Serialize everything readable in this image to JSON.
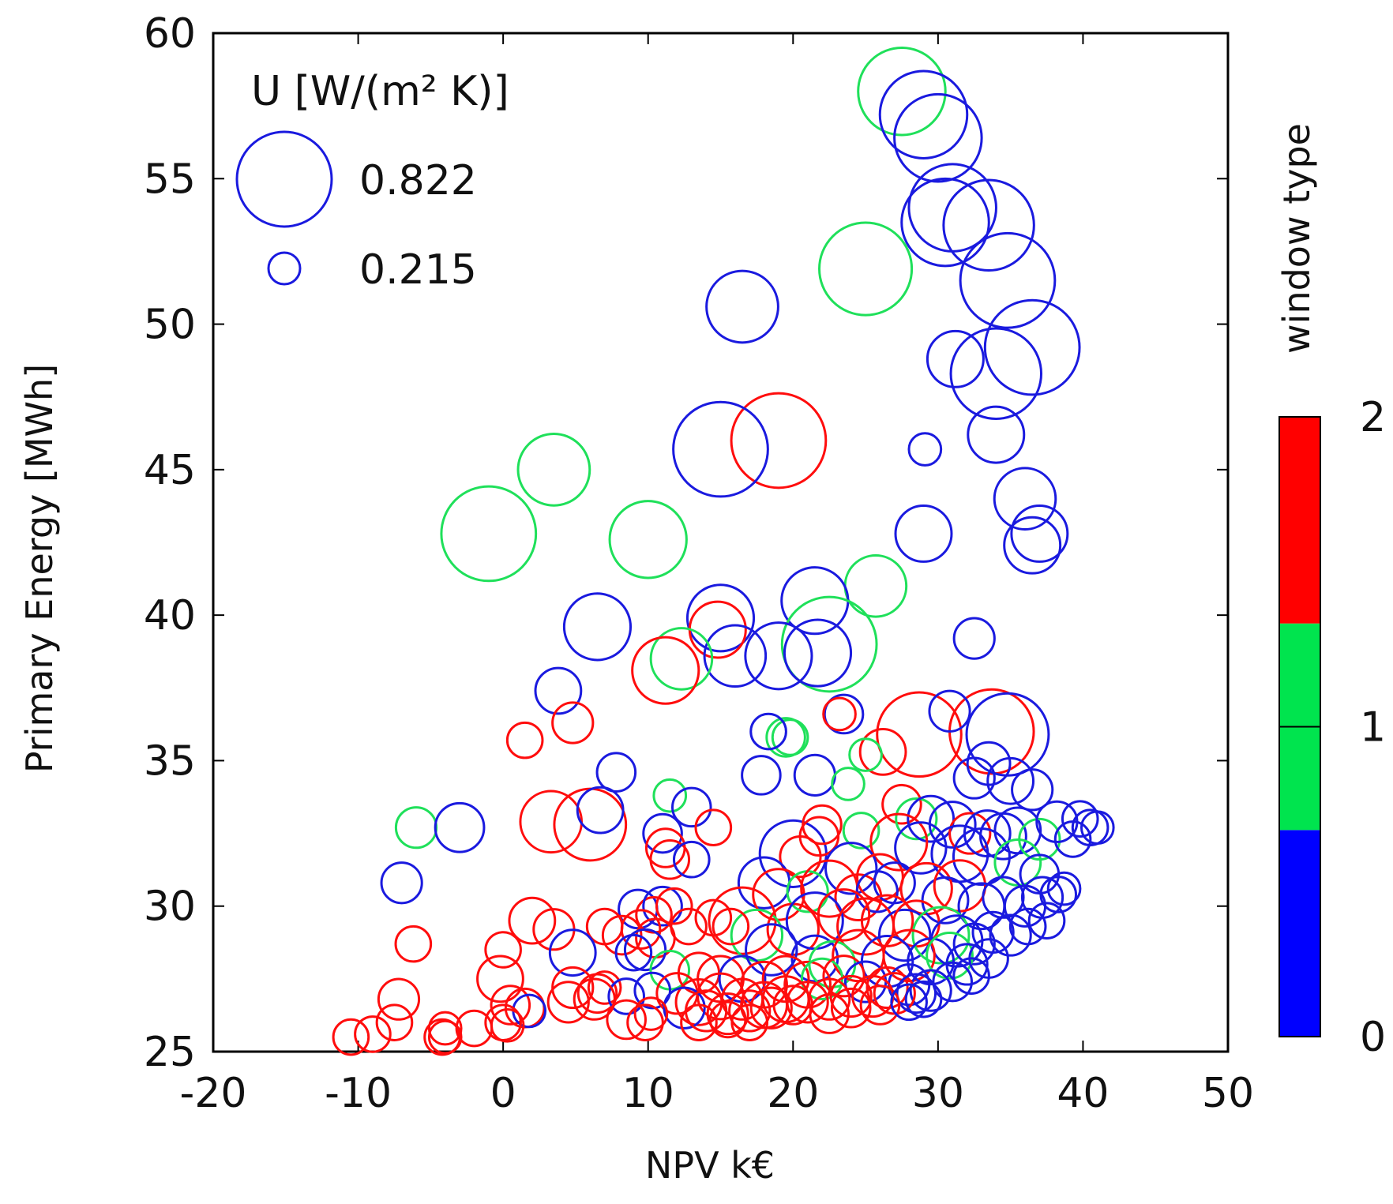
{
  "chart_data": {
    "type": "scatter",
    "title": "",
    "xlabel": "NPV k€",
    "ylabel": "Primary Energy [MWh]",
    "xlim": [
      -20,
      50
    ],
    "ylim": [
      25,
      60
    ],
    "xticks": [
      -20,
      -10,
      0,
      10,
      20,
      30,
      40,
      50
    ],
    "yticks": [
      25,
      30,
      35,
      40,
      45,
      50,
      55,
      60
    ],
    "size_legend": {
      "title": "U [W/(m² K)]",
      "entries": [
        {
          "label": "0.822",
          "u": 0.822
        },
        {
          "label": "0.215",
          "u": 0.215
        }
      ]
    },
    "colorbar": {
      "label": "window type",
      "ticks": [
        "0",
        "1",
        "2"
      ],
      "bands": [
        {
          "value": 0,
          "color": "#0000ff"
        },
        {
          "value": 1,
          "color": "#00e44e"
        },
        {
          "value": 2,
          "color": "#ff0000"
        }
      ]
    },
    "colors": {
      "0": "#1a1adf",
      "1": "#1fe05a",
      "2": "#ff0d0d"
    },
    "encoding": "marker size = U [W/(m2 K)], color = window type",
    "points": [
      [
        27.5,
        58.0,
        0.75,
        1
      ],
      [
        29,
        57.2,
        0.75,
        0
      ],
      [
        30,
        56.4,
        0.75,
        0
      ],
      [
        31,
        54.0,
        0.75,
        0
      ],
      [
        30.5,
        53.5,
        0.75,
        0
      ],
      [
        33.5,
        53.4,
        0.78,
        0
      ],
      [
        34.8,
        51.5,
        0.82,
        0
      ],
      [
        36.5,
        49.2,
        0.82,
        0
      ],
      [
        31.2,
        48.8,
        0.45,
        0
      ],
      [
        34.0,
        48.3,
        0.78,
        0
      ],
      [
        34.0,
        46.2,
        0.45,
        0
      ],
      [
        29.1,
        45.7,
        0.22,
        0
      ],
      [
        25.0,
        51.9,
        0.8,
        1
      ],
      [
        16.5,
        50.6,
        0.6,
        0
      ],
      [
        19.0,
        46.0,
        0.82,
        2
      ],
      [
        15.0,
        45.7,
        0.82,
        0
      ],
      [
        3.5,
        45.0,
        0.6,
        1
      ],
      [
        -1.0,
        42.8,
        0.82,
        1
      ],
      [
        10.0,
        42.6,
        0.65,
        1
      ],
      [
        36.0,
        44.0,
        0.5,
        0
      ],
      [
        37.0,
        42.8,
        0.45,
        0
      ],
      [
        36.5,
        42.4,
        0.45,
        0
      ],
      [
        29.0,
        42.8,
        0.45,
        0
      ],
      [
        25.7,
        41.0,
        0.5,
        1
      ],
      [
        21.5,
        40.5,
        0.55,
        0
      ],
      [
        22.5,
        39.0,
        0.82,
        1
      ],
      [
        21.7,
        38.7,
        0.55,
        0
      ],
      [
        19.0,
        38.6,
        0.55,
        0
      ],
      [
        15.0,
        39.9,
        0.55,
        0
      ],
      [
        14.8,
        39.5,
        0.45,
        2
      ],
      [
        16.0,
        38.6,
        0.5,
        0
      ],
      [
        12.3,
        38.5,
        0.5,
        1
      ],
      [
        11.2,
        38.1,
        0.55,
        2
      ],
      [
        6.5,
        39.6,
        0.55,
        0
      ],
      [
        32.5,
        39.2,
        0.3,
        0
      ],
      [
        3.8,
        37.4,
        0.35,
        0
      ],
      [
        4.8,
        36.3,
        0.3,
        2
      ],
      [
        1.5,
        35.7,
        0.25,
        2
      ],
      [
        23.5,
        36.6,
        0.28,
        0
      ],
      [
        23.2,
        36.6,
        0.22,
        2
      ],
      [
        28.7,
        35.9,
        0.72,
        2
      ],
      [
        33.7,
        36.0,
        0.72,
        2
      ],
      [
        34.8,
        35.9,
        0.7,
        0
      ],
      [
        30.8,
        36.7,
        0.3,
        0
      ],
      [
        19.5,
        35.8,
        0.28,
        1
      ],
      [
        19.8,
        35.8,
        0.25,
        1
      ],
      [
        18.3,
        36.0,
        0.25,
        0
      ],
      [
        26.2,
        35.3,
        0.35,
        2
      ],
      [
        25.0,
        35.2,
        0.22,
        1
      ],
      [
        33.5,
        34.9,
        0.32,
        0
      ],
      [
        32.5,
        34.4,
        0.3,
        0
      ],
      [
        35.0,
        34.3,
        0.35,
        0
      ],
      [
        36.5,
        34.0,
        0.3,
        0
      ],
      [
        7.8,
        34.6,
        0.28,
        0
      ],
      [
        17.8,
        34.5,
        0.28,
        0
      ],
      [
        21.5,
        34.5,
        0.3,
        0
      ],
      [
        23.8,
        34.2,
        0.22,
        1
      ],
      [
        11.5,
        33.8,
        0.22,
        1
      ],
      [
        13.0,
        33.4,
        0.28,
        0
      ],
      [
        3.3,
        32.9,
        0.5,
        2
      ],
      [
        6.0,
        32.8,
        0.6,
        2
      ],
      [
        6.7,
        33.3,
        0.35,
        0
      ],
      [
        -6.0,
        32.7,
        0.3,
        1
      ],
      [
        -3.0,
        32.7,
        0.38,
        0
      ],
      [
        14.5,
        32.7,
        0.25,
        2
      ],
      [
        11.0,
        32.5,
        0.28,
        0
      ],
      [
        11.2,
        32.0,
        0.28,
        2
      ],
      [
        11.5,
        31.6,
        0.28,
        2
      ],
      [
        13.0,
        31.6,
        0.25,
        0
      ],
      [
        -7.0,
        30.8,
        0.3,
        0
      ],
      [
        20.0,
        31.8,
        0.55,
        0
      ],
      [
        20.5,
        31.7,
        0.3,
        2
      ],
      [
        21.8,
        32.4,
        0.28,
        2
      ],
      [
        22.0,
        32.8,
        0.28,
        2
      ],
      [
        24.7,
        32.6,
        0.25,
        1
      ],
      [
        27.5,
        33.5,
        0.28,
        2
      ],
      [
        28.5,
        33.0,
        0.3,
        1
      ],
      [
        29.5,
        33.0,
        0.35,
        0
      ],
      [
        31.0,
        32.8,
        0.35,
        0
      ],
      [
        32.2,
        32.5,
        0.3,
        2
      ],
      [
        33.4,
        32.5,
        0.35,
        0
      ],
      [
        34.5,
        32.4,
        0.35,
        0
      ],
      [
        35.5,
        32.6,
        0.35,
        0
      ],
      [
        37.0,
        32.3,
        0.3,
        1
      ],
      [
        38.2,
        32.9,
        0.3,
        0
      ],
      [
        39.8,
        33.0,
        0.25,
        0
      ],
      [
        40.5,
        32.7,
        0.25,
        0
      ],
      [
        41.0,
        32.7,
        0.22,
        0
      ],
      [
        39.3,
        32.3,
        0.25,
        0
      ],
      [
        27.3,
        32.2,
        0.45,
        2
      ],
      [
        28.8,
        32.0,
        0.4,
        0
      ],
      [
        31.5,
        31.8,
        0.45,
        0
      ],
      [
        33.0,
        31.7,
        0.45,
        0
      ],
      [
        35.5,
        31.5,
        0.35,
        1
      ],
      [
        37.0,
        31.1,
        0.28,
        0
      ],
      [
        24.0,
        31.3,
        0.4,
        0
      ],
      [
        26.0,
        31.0,
        0.35,
        2
      ],
      [
        18.0,
        30.8,
        0.4,
        0
      ],
      [
        19.0,
        30.4,
        0.4,
        2
      ],
      [
        21.0,
        30.5,
        0.3,
        1
      ],
      [
        22.5,
        30.6,
        0.45,
        2
      ],
      [
        24.5,
        30.3,
        0.35,
        2
      ],
      [
        25.8,
        30.5,
        0.3,
        0
      ],
      [
        27.0,
        30.8,
        0.3,
        0
      ],
      [
        29.2,
        30.6,
        0.4,
        2
      ],
      [
        30.5,
        30.2,
        0.35,
        0
      ],
      [
        31.5,
        30.7,
        0.4,
        2
      ],
      [
        33.0,
        30.0,
        0.35,
        0
      ],
      [
        34.5,
        30.3,
        0.3,
        0
      ],
      [
        36.0,
        30.0,
        0.3,
        0
      ],
      [
        37.2,
        30.3,
        0.3,
        0
      ],
      [
        38.3,
        30.4,
        0.25,
        0
      ],
      [
        38.7,
        30.6,
        0.22,
        0
      ],
      [
        16.5,
        29.5,
        0.55,
        2
      ],
      [
        17.5,
        29.0,
        0.4,
        1
      ],
      [
        20.0,
        29.2,
        0.4,
        2
      ],
      [
        21.5,
        29.5,
        0.45,
        0
      ],
      [
        23.5,
        29.7,
        0.4,
        2
      ],
      [
        25.0,
        29.3,
        0.45,
        2
      ],
      [
        26.5,
        29.5,
        0.4,
        2
      ],
      [
        27.7,
        29.0,
        0.4,
        0
      ],
      [
        28.5,
        29.4,
        0.35,
        2
      ],
      [
        30.2,
        29.0,
        0.45,
        1
      ],
      [
        31.3,
        28.8,
        0.4,
        0
      ],
      [
        32.5,
        28.7,
        0.3,
        0
      ],
      [
        33.8,
        29.1,
        0.3,
        0
      ],
      [
        35.0,
        29.0,
        0.3,
        0
      ],
      [
        36.2,
        29.3,
        0.25,
        0
      ],
      [
        37.5,
        29.5,
        0.25,
        0
      ],
      [
        9.3,
        29.9,
        0.28,
        0
      ],
      [
        10.4,
        29.7,
        0.25,
        2
      ],
      [
        11.0,
        30.0,
        0.28,
        0
      ],
      [
        11.8,
        30.0,
        0.25,
        2
      ],
      [
        14.5,
        29.6,
        0.25,
        2
      ],
      [
        15.7,
        29.3,
        0.25,
        2
      ],
      [
        12.8,
        29.3,
        0.25,
        2
      ],
      [
        9.5,
        29.2,
        0.28,
        2
      ],
      [
        10.5,
        28.9,
        0.28,
        2
      ],
      [
        8.2,
        29.0,
        0.28,
        2
      ],
      [
        7.0,
        29.3,
        0.25,
        2
      ],
      [
        2.0,
        29.5,
        0.35,
        2
      ],
      [
        3.5,
        29.2,
        0.3,
        2
      ],
      [
        4.8,
        28.4,
        0.35,
        0
      ],
      [
        -6.2,
        28.7,
        0.25,
        2
      ],
      [
        0.0,
        28.5,
        0.25,
        2
      ],
      [
        9.8,
        28.5,
        0.3,
        0
      ],
      [
        9.0,
        28.4,
        0.25,
        0
      ],
      [
        18.5,
        28.5,
        0.4,
        0
      ],
      [
        21.5,
        28.2,
        0.35,
        0
      ],
      [
        22.7,
        28.0,
        0.35,
        1
      ],
      [
        24.5,
        28.3,
        0.4,
        2
      ],
      [
        26.5,
        28.1,
        0.4,
        0
      ],
      [
        28.0,
        28.3,
        0.4,
        2
      ],
      [
        29.5,
        28.1,
        0.35,
        0
      ],
      [
        30.8,
        28.3,
        0.35,
        1
      ],
      [
        32.0,
        28.0,
        0.3,
        0
      ],
      [
        33.5,
        28.2,
        0.28,
        0
      ],
      [
        11.5,
        27.8,
        0.28,
        1
      ],
      [
        13.5,
        27.7,
        0.3,
        2
      ],
      [
        15.0,
        27.5,
        0.35,
        2
      ],
      [
        16.5,
        27.5,
        0.35,
        0
      ],
      [
        18.0,
        27.3,
        0.35,
        2
      ],
      [
        19.5,
        27.5,
        0.35,
        2
      ],
      [
        21.0,
        27.3,
        0.35,
        2
      ],
      [
        22.0,
        27.5,
        0.3,
        1
      ],
      [
        23.5,
        27.6,
        0.3,
        2
      ],
      [
        25.0,
        27.4,
        0.3,
        0
      ],
      [
        26.5,
        27.2,
        0.3,
        2
      ],
      [
        28.0,
        27.3,
        0.3,
        0
      ],
      [
        29.5,
        27.1,
        0.3,
        0
      ],
      [
        31.0,
        27.4,
        0.28,
        0
      ],
      [
        32.3,
        27.6,
        0.25,
        0
      ],
      [
        -0.2,
        27.5,
        0.35,
        2
      ],
      [
        4.8,
        27.2,
        0.3,
        2
      ],
      [
        6.5,
        27.0,
        0.28,
        2
      ],
      [
        7.0,
        27.2,
        0.22,
        2
      ],
      [
        10.3,
        27.1,
        0.25,
        0
      ],
      [
        12.0,
        27.0,
        0.3,
        2
      ],
      [
        13.5,
        26.7,
        0.35,
        2
      ],
      [
        15.0,
        26.9,
        0.35,
        2
      ],
      [
        16.5,
        26.8,
        0.3,
        2
      ],
      [
        18.0,
        26.6,
        0.35,
        2
      ],
      [
        19.5,
        26.8,
        0.35,
        2
      ],
      [
        21.0,
        26.7,
        0.3,
        2
      ],
      [
        22.5,
        26.8,
        0.3,
        2
      ],
      [
        24.0,
        26.9,
        0.3,
        2
      ],
      [
        25.5,
        26.9,
        0.3,
        2
      ],
      [
        27.0,
        27.0,
        0.3,
        2
      ],
      [
        28.5,
        27.0,
        0.28,
        0
      ],
      [
        29.0,
        26.8,
        0.25,
        0
      ],
      [
        -7.2,
        26.8,
        0.3,
        2
      ],
      [
        8.5,
        26.9,
        0.25,
        0
      ],
      [
        4.5,
        26.7,
        0.3,
        2
      ],
      [
        6.3,
        26.8,
        0.3,
        2
      ],
      [
        0.5,
        26.6,
        0.28,
        2
      ],
      [
        1.5,
        26.5,
        0.28,
        2
      ],
      [
        1.8,
        26.4,
        0.22,
        0
      ],
      [
        12.5,
        26.5,
        0.3,
        0
      ],
      [
        14.0,
        26.4,
        0.3,
        2
      ],
      [
        15.5,
        26.3,
        0.3,
        2
      ],
      [
        17.0,
        26.4,
        0.3,
        2
      ],
      [
        18.5,
        26.5,
        0.3,
        2
      ],
      [
        20.0,
        26.6,
        0.28,
        2
      ],
      [
        22.5,
        26.3,
        0.28,
        2
      ],
      [
        24.0,
        26.5,
        0.28,
        2
      ],
      [
        26.0,
        26.6,
        0.28,
        2
      ],
      [
        28.0,
        26.7,
        0.25,
        0
      ],
      [
        8.5,
        26.1,
        0.28,
        2
      ],
      [
        9.8,
        26.0,
        0.25,
        2
      ],
      [
        10.2,
        26.3,
        0.22,
        2
      ],
      [
        13.5,
        26.0,
        0.25,
        2
      ],
      [
        15.5,
        26.1,
        0.25,
        2
      ],
      [
        17.0,
        26.0,
        0.25,
        2
      ],
      [
        0.0,
        26.0,
        0.25,
        2
      ],
      [
        0.3,
        25.9,
        0.22,
        2
      ],
      [
        -7.5,
        26.0,
        0.25,
        2
      ],
      [
        -2.0,
        25.8,
        0.25,
        2
      ],
      [
        -4.0,
        25.8,
        0.22,
        2
      ],
      [
        -4.2,
        25.5,
        0.25,
        2
      ],
      [
        -10.5,
        25.5,
        0.25,
        2
      ],
      [
        -9.0,
        25.6,
        0.25,
        2
      ],
      [
        -4.0,
        25.5,
        0.22,
        2
      ]
    ]
  }
}
